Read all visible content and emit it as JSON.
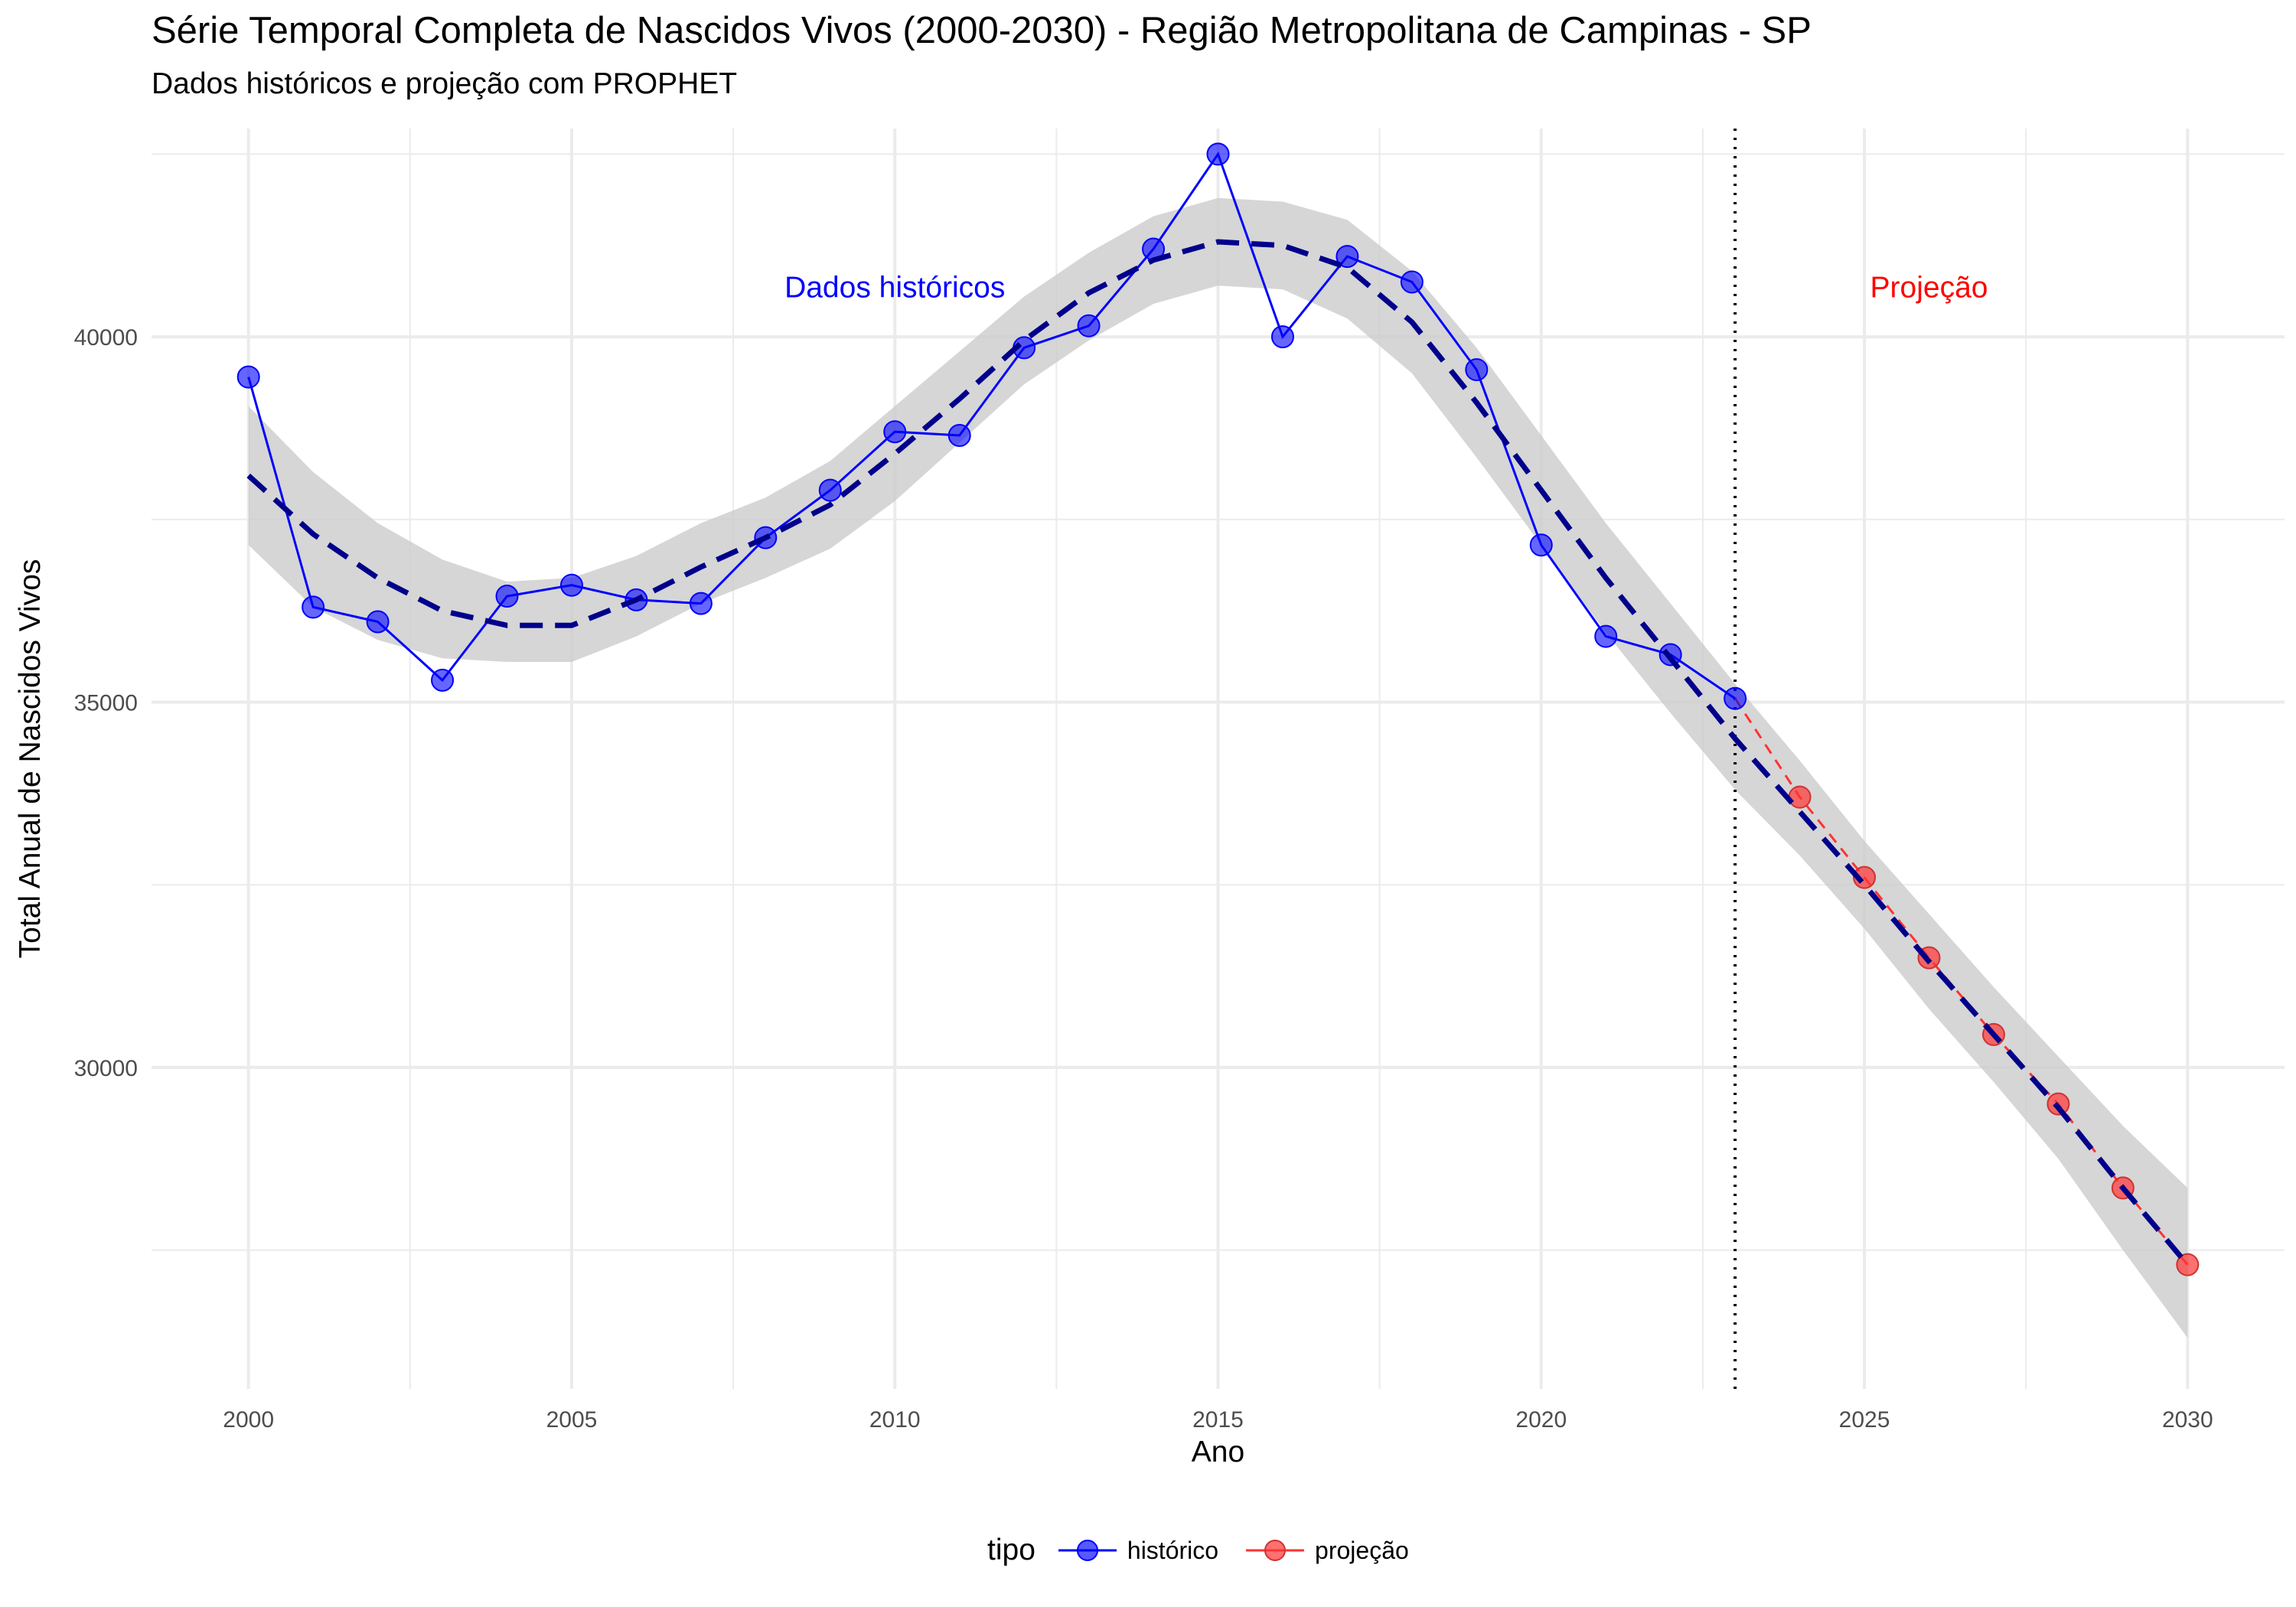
{
  "title": "Série Temporal Completa de Nascidos Vivos (2000-2030) -  Região Metropolitana de Campinas - SP",
  "subtitle": "Dados históricos e projeção com PROPHET",
  "colors": {
    "historico": "#0000FF",
    "projecao": "#FF3333",
    "trend": "#00008B",
    "ribbon": "#CCCCCC",
    "grid": "#EBEBEB"
  },
  "legend": {
    "title": "tipo",
    "items": [
      {
        "label": "histórico",
        "color": "#0000FF"
      },
      {
        "label": "projeção",
        "color": "#FF3333"
      }
    ]
  },
  "chart_data": {
    "type": "line",
    "title": "Série Temporal Completa de Nascidos Vivos (2000-2030) -  Região Metropolitana de Campinas - SP",
    "subtitle": "Dados históricos e projeção com PROPHET",
    "xlabel": "Ano",
    "ylabel": "Total Anual de Nascidos Vivos",
    "xlim": [
      1998.5,
      2031.5
    ],
    "ylim": [
      25600,
      42850
    ],
    "x_ticks": [
      2000,
      2005,
      2010,
      2015,
      2020,
      2025,
      2030
    ],
    "y_ticks": [
      30000,
      35000,
      40000
    ],
    "grid": true,
    "legend_position": "bottom",
    "cutoff_year": 2023,
    "annotations": [
      {
        "text": "Dados históricos",
        "x": 2010,
        "y": 40350,
        "color": "#0000FF"
      },
      {
        "text": "Projeção",
        "x": 2026,
        "y": 40350,
        "color": "#FF0000"
      }
    ],
    "series": [
      {
        "name": "histórico",
        "color": "#0000FF",
        "x": [
          2000,
          2001,
          2002,
          2003,
          2004,
          2005,
          2006,
          2007,
          2008,
          2009,
          2010,
          2011,
          2012,
          2013,
          2014,
          2015,
          2016,
          2017,
          2018,
          2019,
          2020,
          2021,
          2022,
          2023
        ],
        "values": [
          39450,
          36300,
          36100,
          35300,
          36450,
          36600,
          36400,
          36350,
          37250,
          37900,
          38700,
          38650,
          39850,
          40150,
          41200,
          42500,
          40000,
          41100,
          40750,
          39550,
          37150,
          35900,
          35650,
          35050
        ]
      },
      {
        "name": "projeção",
        "color": "#FF3333",
        "x": [
          2023,
          2024,
          2025,
          2026,
          2027,
          2028,
          2029,
          2030
        ],
        "values": [
          35050,
          33700,
          32600,
          31500,
          30450,
          29500,
          28350,
          27300
        ]
      }
    ],
    "trend": {
      "x": [
        2000,
        2001,
        2002,
        2003,
        2004,
        2005,
        2006,
        2007,
        2008,
        2009,
        2010,
        2011,
        2012,
        2013,
        2014,
        2015,
        2016,
        2017,
        2018,
        2019,
        2020,
        2021,
        2022,
        2023,
        2024,
        2025,
        2026,
        2027,
        2028,
        2029,
        2030
      ],
      "values": [
        38100,
        37300,
        36700,
        36250,
        36050,
        36050,
        36400,
        36850,
        37250,
        37700,
        38400,
        39150,
        39950,
        40600,
        41050,
        41300,
        41250,
        40950,
        40200,
        39100,
        37900,
        36700,
        35600,
        34500,
        33500,
        32500,
        31450,
        30450,
        29450,
        28350,
        27300
      ],
      "lower": [
        37150,
        36300,
        35850,
        35600,
        35550,
        35550,
        35900,
        36350,
        36700,
        37100,
        37750,
        38550,
        39350,
        39950,
        40450,
        40700,
        40650,
        40250,
        39500,
        38350,
        37150,
        35950,
        34850,
        33800,
        32900,
        31900,
        30800,
        29800,
        28750,
        27500,
        26300
      ],
      "upper": [
        39050,
        38150,
        37450,
        36950,
        36650,
        36700,
        37000,
        37450,
        37800,
        38300,
        39050,
        39800,
        40550,
        41150,
        41650,
        41900,
        41850,
        41600,
        40900,
        39850,
        38650,
        37450,
        36350,
        35250,
        34200,
        33100,
        32100,
        31100,
        30150,
        29200,
        28350
      ]
    }
  }
}
